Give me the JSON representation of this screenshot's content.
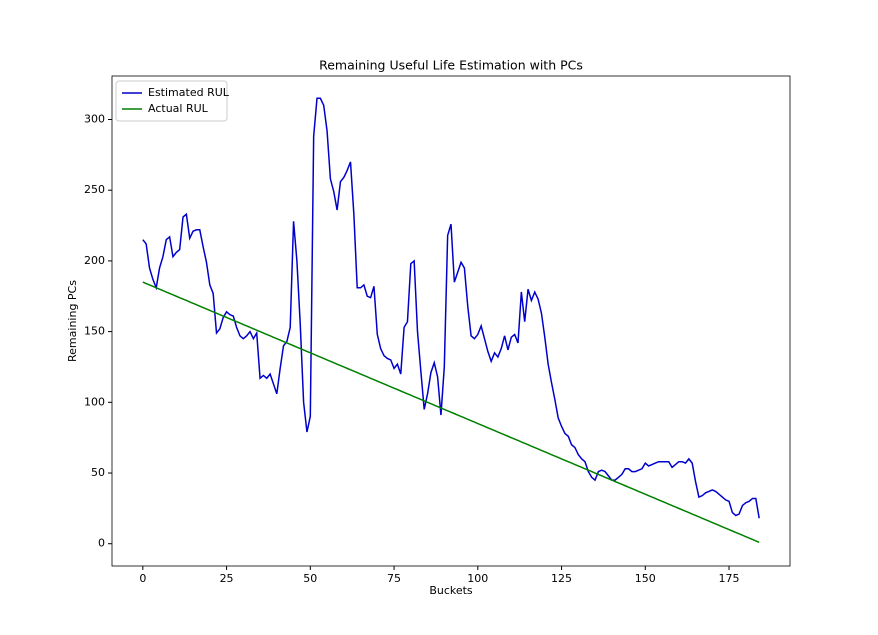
{
  "chart_data": {
    "type": "line",
    "title": "Remaining Useful Life Estimation with PCs",
    "x_label": "Buckets",
    "y_label": "Remaining PCs",
    "x": [
      0,
      1,
      2,
      3,
      4,
      5,
      6,
      7,
      8,
      9,
      10,
      11,
      12,
      13,
      14,
      15,
      16,
      17,
      18,
      19,
      20,
      21,
      22,
      23,
      24,
      25,
      26,
      27,
      28,
      29,
      30,
      31,
      32,
      33,
      34,
      35,
      36,
      37,
      38,
      39,
      40,
      41,
      42,
      43,
      44,
      45,
      46,
      47,
      48,
      49,
      50,
      51,
      52,
      53,
      54,
      55,
      56,
      57,
      58,
      59,
      60,
      61,
      62,
      63,
      64,
      65,
      66,
      67,
      68,
      69,
      70,
      71,
      72,
      73,
      74,
      75,
      76,
      77,
      78,
      79,
      80,
      81,
      82,
      83,
      84,
      85,
      86,
      87,
      88,
      89,
      90,
      91,
      92,
      93,
      94,
      95,
      96,
      97,
      98,
      99,
      100,
      101,
      102,
      103,
      104,
      105,
      106,
      107,
      108,
      109,
      110,
      111,
      112,
      113,
      114,
      115,
      116,
      117,
      118,
      119,
      120,
      121,
      122,
      123,
      124,
      125,
      126,
      127,
      128,
      129,
      130,
      131,
      132,
      133,
      134,
      135,
      136,
      137,
      138,
      139,
      140,
      141,
      142,
      143,
      144,
      145,
      146,
      147,
      148,
      149,
      150,
      151,
      152,
      153,
      154,
      155,
      156,
      157,
      158,
      159,
      160,
      161,
      162,
      163,
      164,
      165,
      166,
      167,
      168,
      169,
      170,
      171,
      172,
      173,
      174,
      175,
      176,
      177,
      178,
      179,
      180,
      181,
      182,
      183,
      184
    ],
    "series": [
      {
        "name": "Estimated RUL",
        "color": "#0000cc",
        "values": [
          215,
          212,
          195,
          187,
          181,
          195,
          203,
          215,
          217,
          203,
          206,
          208,
          231,
          233,
          216,
          221,
          222,
          222,
          210,
          199,
          183,
          177,
          149,
          152,
          160,
          164,
          162,
          161,
          153,
          147,
          145,
          147,
          150,
          145,
          149,
          117,
          119,
          117,
          120,
          113,
          106,
          124,
          140,
          143,
          153,
          228,
          200,
          155,
          100,
          79,
          90,
          288,
          315,
          315,
          310,
          292,
          258,
          249,
          236,
          256,
          259,
          264,
          270,
          233,
          181,
          181,
          183,
          175,
          174,
          182,
          148,
          138,
          133,
          131,
          130,
          124,
          127,
          120,
          153,
          157,
          198,
          200,
          150,
          122,
          95,
          106,
          121,
          128,
          118,
          91,
          125,
          218,
          226,
          185,
          192,
          199,
          195,
          168,
          147,
          145,
          148,
          154,
          145,
          136,
          129,
          135,
          132,
          138,
          147,
          137,
          146,
          148,
          142,
          178,
          157,
          180,
          172,
          178,
          173,
          163,
          146,
          127,
          114,
          102,
          89,
          83,
          78,
          76,
          70,
          68,
          63,
          60,
          58,
          51,
          47,
          45,
          51,
          52,
          51,
          48,
          45,
          45,
          47,
          49,
          53,
          53,
          51,
          51,
          52,
          53,
          57,
          55,
          56,
          57,
          58,
          58,
          58,
          58,
          54,
          56,
          58,
          58,
          57,
          60,
          57,
          44,
          33,
          34,
          36,
          37,
          38,
          37,
          35,
          33,
          31,
          30,
          22,
          20,
          21,
          27,
          29,
          30,
          32,
          32,
          18
        ]
      },
      {
        "name": "Actual RUL",
        "color": "#008000",
        "values": [
          185,
          184,
          183,
          182,
          181,
          180,
          179,
          178,
          177,
          176,
          175,
          174,
          173,
          172,
          171,
          170,
          169,
          168,
          167,
          166,
          165,
          164,
          163,
          162,
          161,
          160,
          159,
          158,
          157,
          156,
          155,
          154,
          153,
          152,
          151,
          150,
          149,
          148,
          147,
          146,
          145,
          144,
          143,
          142,
          141,
          140,
          139,
          138,
          137,
          136,
          135,
          134,
          133,
          132,
          131,
          130,
          129,
          128,
          127,
          126,
          125,
          124,
          123,
          122,
          121,
          120,
          119,
          118,
          117,
          116,
          115,
          114,
          113,
          112,
          111,
          110,
          109,
          108,
          107,
          106,
          105,
          104,
          103,
          102,
          101,
          100,
          99,
          98,
          97,
          96,
          95,
          94,
          93,
          92,
          91,
          90,
          89,
          88,
          87,
          86,
          85,
          84,
          83,
          82,
          81,
          80,
          79,
          78,
          77,
          76,
          75,
          74,
          73,
          72,
          71,
          70,
          69,
          68,
          67,
          66,
          65,
          64,
          63,
          62,
          61,
          60,
          59,
          58,
          57,
          56,
          55,
          54,
          53,
          52,
          51,
          50,
          49,
          48,
          47,
          46,
          45,
          44,
          43,
          42,
          41,
          40,
          39,
          38,
          37,
          36,
          35,
          34,
          33,
          32,
          31,
          30,
          29,
          28,
          27,
          26,
          25,
          24,
          23,
          22,
          21,
          20,
          19,
          18,
          17,
          16,
          15,
          14,
          13,
          12,
          11,
          10,
          9,
          8,
          7,
          6,
          5,
          4,
          3,
          2,
          1
        ]
      }
    ],
    "xlim": [
      -9.2,
      193.2
    ],
    "ylim": [
      -15.75,
      330.75
    ],
    "xticks": [
      0,
      25,
      50,
      75,
      100,
      125,
      150,
      175
    ],
    "yticks": [
      0,
      50,
      100,
      150,
      200,
      250,
      300
    ],
    "grid": false,
    "legend": "upper left"
  }
}
